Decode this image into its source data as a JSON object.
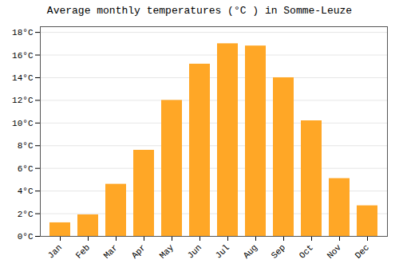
{
  "chart_data": {
    "type": "bar",
    "title": "Average monthly temperatures (°C ) in Somme-Leuze",
    "categories": [
      "Jan",
      "Feb",
      "Mar",
      "Apr",
      "May",
      "Jun",
      "Jul",
      "Aug",
      "Sep",
      "Oct",
      "Nov",
      "Dec"
    ],
    "values": [
      1.2,
      1.9,
      4.6,
      7.6,
      12.0,
      15.2,
      17.0,
      16.8,
      14.0,
      10.2,
      5.1,
      2.7
    ],
    "color": "#FFA726",
    "ylim": [
      0,
      18.5
    ],
    "yticks": [
      {
        "value": 0,
        "label": "0°C"
      },
      {
        "value": 2,
        "label": "2°C"
      },
      {
        "value": 4,
        "label": "4°C"
      },
      {
        "value": 6,
        "label": "6°C"
      },
      {
        "value": 8,
        "label": "8°C"
      },
      {
        "value": 10,
        "label": "10°C"
      },
      {
        "value": 12,
        "label": "12°C"
      },
      {
        "value": 14,
        "label": "14°C"
      },
      {
        "value": 16,
        "label": "16°C"
      },
      {
        "value": 18,
        "label": "18°C"
      }
    ],
    "grid": true
  }
}
